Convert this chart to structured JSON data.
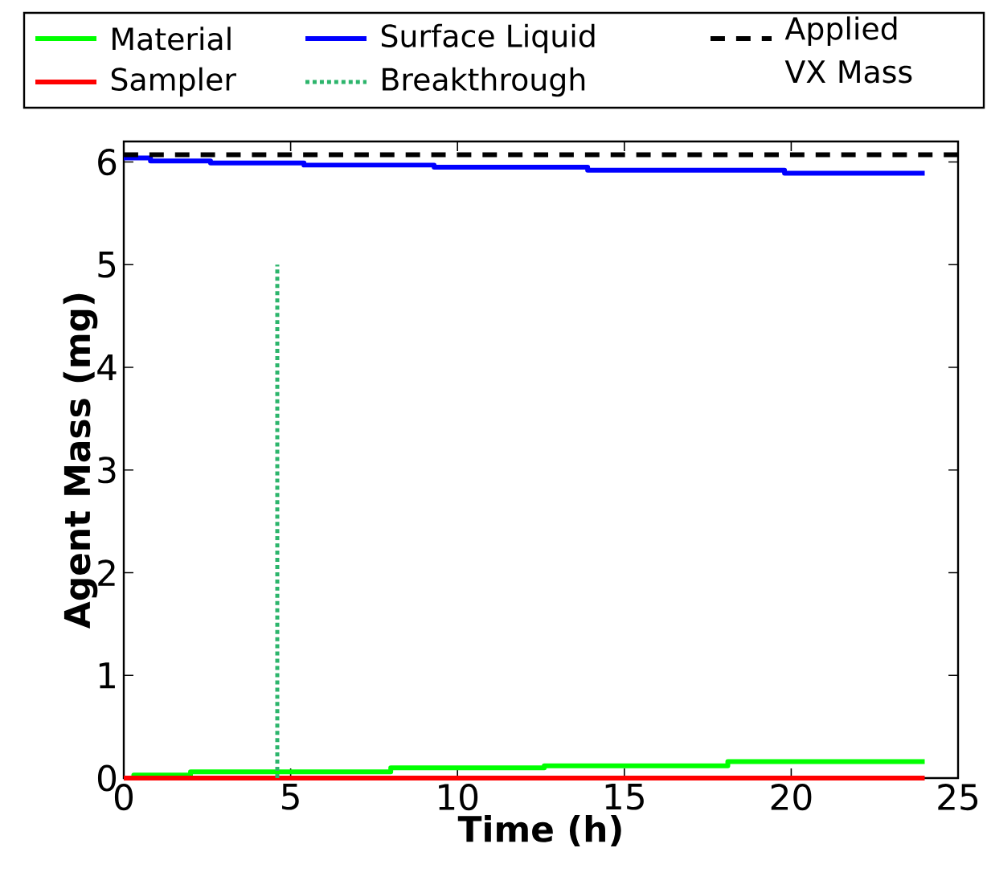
{
  "chart_data": {
    "type": "step",
    "xlabel": "Time (h)",
    "ylabel": "Agent Mass (mg)",
    "xlim": [
      0,
      25
    ],
    "ylim": [
      0,
      6.2
    ],
    "xticks": [
      0,
      5,
      10,
      15,
      20,
      25
    ],
    "yticks": [
      0,
      1,
      2,
      3,
      4,
      5,
      6
    ],
    "grid": false,
    "legend": "top",
    "series": [
      {
        "name": "Material",
        "color": "#00ff00",
        "x": [
          0,
          0.3,
          2,
          8,
          12.6,
          18.1,
          24
        ],
        "values": [
          0,
          0.03,
          0.06,
          0.1,
          0.12,
          0.16,
          0.16
        ]
      },
      {
        "name": "Surface Liquid",
        "color": "#0000ff",
        "x": [
          0,
          0.8,
          2.6,
          5.4,
          9.3,
          13.9,
          19.8,
          24
        ],
        "values": [
          6.04,
          6.01,
          5.99,
          5.97,
          5.95,
          5.92,
          5.89,
          5.89
        ]
      },
      {
        "name": "Applied VX Mass",
        "type": "line",
        "line_style": "dashed",
        "color": "#000000",
        "x": [
          0,
          25
        ],
        "values": [
          6.07,
          6.07
        ]
      },
      {
        "name": "Sampler",
        "color": "#ff0000",
        "x": [
          0,
          24
        ],
        "values": [
          0,
          0
        ]
      },
      {
        "name": "Breakthrough",
        "type": "line",
        "line_style": "dotted",
        "color": "#2db56c",
        "x": [
          4.6,
          4.6
        ],
        "values": [
          0,
          5
        ]
      }
    ]
  }
}
